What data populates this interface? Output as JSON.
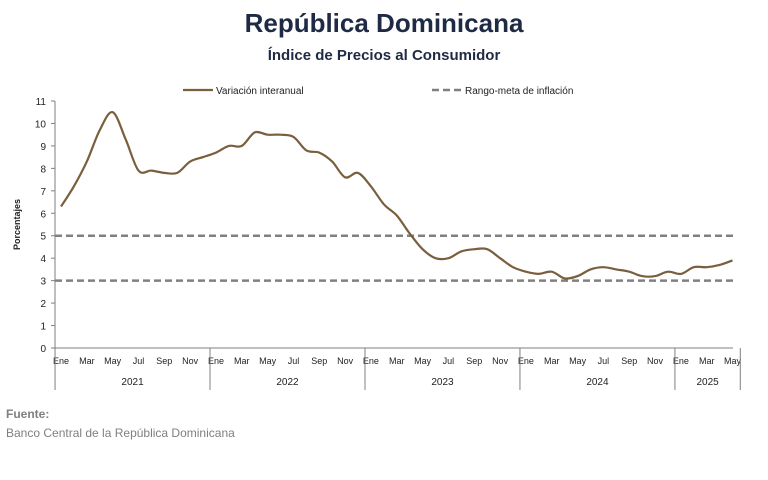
{
  "header": {
    "title": "República Dominicana",
    "subtitle": "Índice de Precios al Consumidor"
  },
  "source": {
    "label": "Fuente:",
    "text": "Banco Central de la República Dominicana"
  },
  "colors": {
    "series": "#7a5f3e",
    "target": "#808080",
    "axis": "#7f7f7f",
    "title": "#1f2a44"
  },
  "chart_data": {
    "type": "line",
    "title": "",
    "xlabel": "",
    "ylabel": "Porcentajes",
    "ylim": [
      0,
      11
    ],
    "yticks": [
      0,
      1,
      2,
      3,
      4,
      5,
      6,
      7,
      8,
      9,
      10,
      11
    ],
    "grid": false,
    "legend_position": "top",
    "month_tick_labels": [
      "Ene",
      "Mar",
      "May",
      "Jul",
      "Sep",
      "Nov",
      "Ene",
      "Mar",
      "May",
      "Jul",
      "Sep",
      "Nov",
      "Ene",
      "Mar",
      "May",
      "Jul",
      "Sep",
      "Nov",
      "Ene",
      "Mar",
      "May",
      "Jul",
      "Sep",
      "Nov",
      "Ene",
      "Mar",
      "May"
    ],
    "years": [
      {
        "label": "2021",
        "months": 12
      },
      {
        "label": "2022",
        "months": 12
      },
      {
        "label": "2023",
        "months": 12
      },
      {
        "label": "2024",
        "months": 12
      },
      {
        "label": "2025",
        "months": 5
      }
    ],
    "x": [
      "2021-01",
      "2021-02",
      "2021-03",
      "2021-04",
      "2021-05",
      "2021-06",
      "2021-07",
      "2021-08",
      "2021-09",
      "2021-10",
      "2021-11",
      "2021-12",
      "2022-01",
      "2022-02",
      "2022-03",
      "2022-04",
      "2022-05",
      "2022-06",
      "2022-07",
      "2022-08",
      "2022-09",
      "2022-10",
      "2022-11",
      "2022-12",
      "2023-01",
      "2023-02",
      "2023-03",
      "2023-04",
      "2023-05",
      "2023-06",
      "2023-07",
      "2023-08",
      "2023-09",
      "2023-10",
      "2023-11",
      "2023-12",
      "2024-01",
      "2024-02",
      "2024-03",
      "2024-04",
      "2024-05",
      "2024-06",
      "2024-07",
      "2024-08",
      "2024-09",
      "2024-10",
      "2024-11",
      "2024-12",
      "2025-01",
      "2025-02",
      "2025-03",
      "2025-04",
      "2025-05"
    ],
    "series": [
      {
        "name": "Variación interanual",
        "style": "solid",
        "values": [
          6.3,
          7.2,
          8.3,
          9.7,
          10.5,
          9.3,
          7.9,
          7.9,
          7.8,
          7.8,
          8.3,
          8.5,
          8.7,
          9.0,
          9.0,
          9.6,
          9.5,
          9.5,
          9.4,
          8.8,
          8.7,
          8.3,
          7.6,
          7.8,
          7.2,
          6.4,
          5.9,
          5.1,
          4.4,
          4.0,
          4.0,
          4.3,
          4.4,
          4.4,
          4.0,
          3.6,
          3.4,
          3.3,
          3.4,
          3.1,
          3.2,
          3.5,
          3.6,
          3.5,
          3.4,
          3.2,
          3.2,
          3.4,
          3.3,
          3.6,
          3.6,
          3.7,
          3.9
        ]
      },
      {
        "name": "Rango-meta de inflación",
        "style": "dashed",
        "bounds": [
          3,
          5
        ]
      }
    ]
  }
}
